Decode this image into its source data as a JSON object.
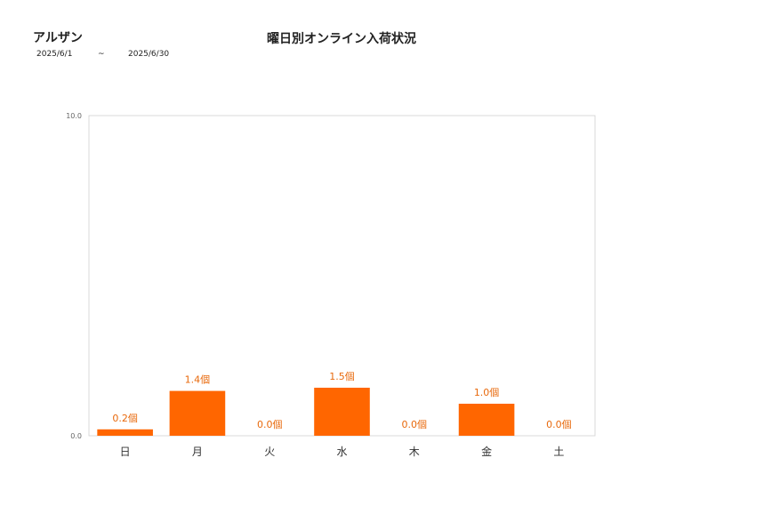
{
  "header": {
    "store_name": "アルザン",
    "date_from": "2025/6/1",
    "date_separator": "~",
    "date_to": "2025/6/30"
  },
  "chart_data": {
    "type": "bar",
    "title": "曜日別オンライン入荷状況",
    "categories": [
      "日",
      "月",
      "火",
      "水",
      "木",
      "金",
      "土"
    ],
    "values": [
      0.2,
      1.4,
      0.0,
      1.5,
      0.0,
      1.0,
      0.0
    ],
    "value_labels": [
      "0.2個",
      "1.4個",
      "0.0個",
      "1.5個",
      "0.0個",
      "1.0個",
      "0.0個"
    ],
    "ylim": [
      0,
      10
    ],
    "yticks": [
      "0.0",
      "10.0"
    ],
    "xlabel": "",
    "ylabel": "",
    "bar_color": "#ff6600",
    "label_color": "#e8690c",
    "grid": false,
    "legend": "none"
  }
}
